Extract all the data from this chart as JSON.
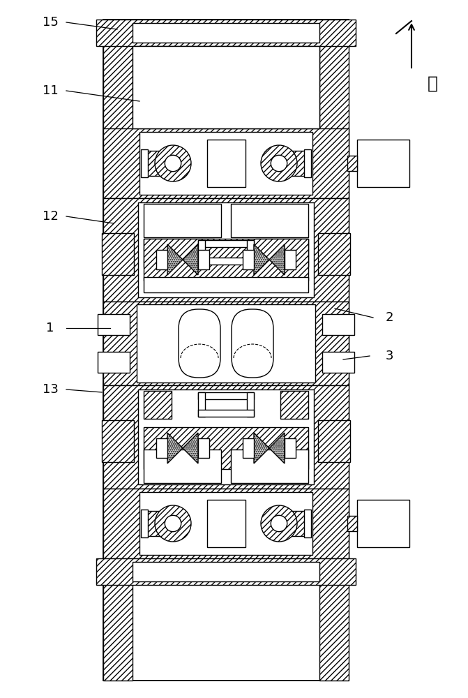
{
  "bg_color": "#ffffff",
  "fig_width": 6.71,
  "fig_height": 10.0,
  "direction_label": "前",
  "labels": [
    "15",
    "11",
    "12",
    "1",
    "13",
    "2",
    "3"
  ]
}
